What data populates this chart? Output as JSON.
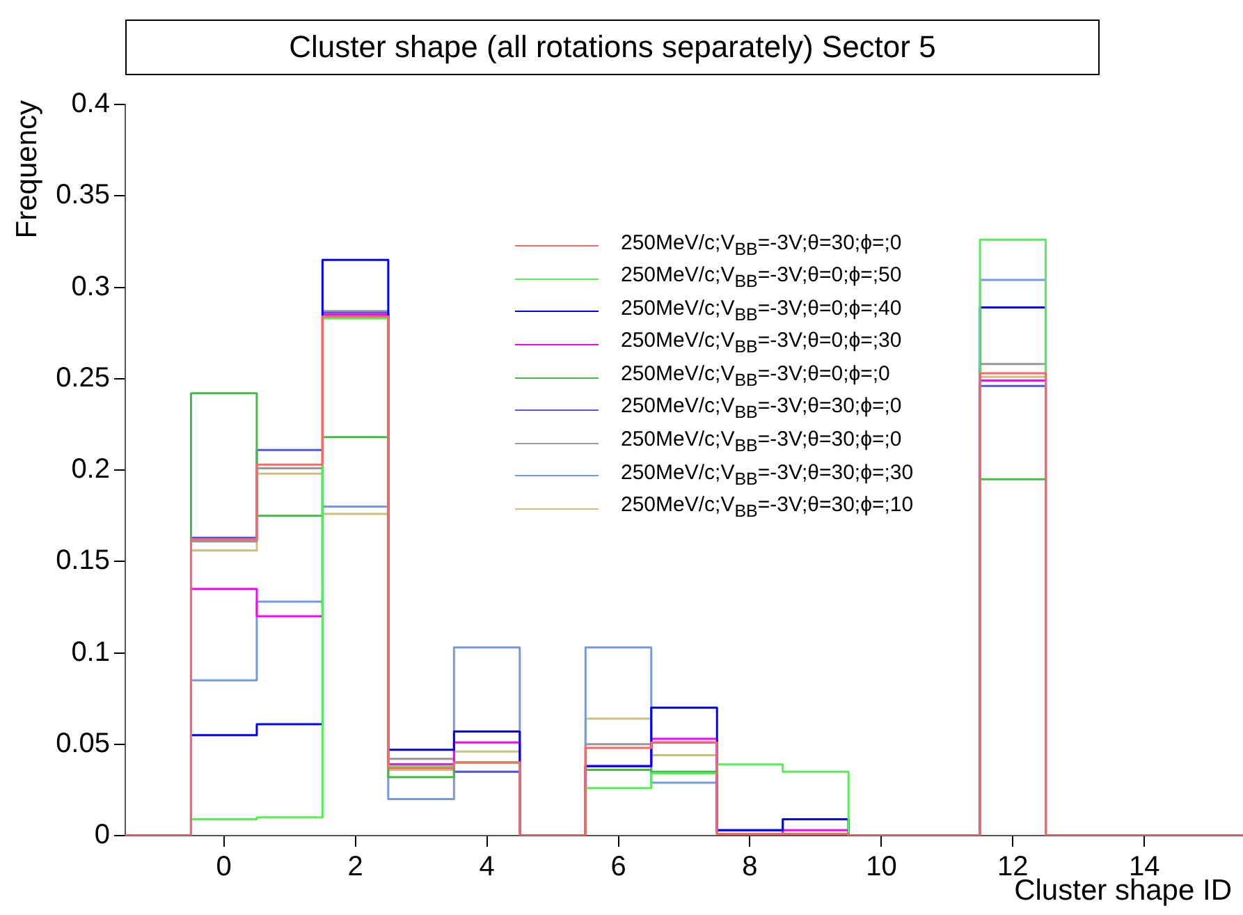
{
  "chart_data": {
    "type": "histogram",
    "title": "Cluster shape (all rotations separately) Sector 5",
    "xlabel": "Cluster shape ID",
    "ylabel": "Frequency",
    "bins": [
      -1.5,
      -0.5,
      0.5,
      1.5,
      2.5,
      3.5,
      4.5,
      5.5,
      6.5,
      7.5,
      8.5,
      9.5,
      10.5,
      11.5,
      12.5,
      13.5,
      14.5,
      15.5
    ],
    "xlim": [
      -1.5,
      15.5
    ],
    "xticks": [
      0,
      2,
      4,
      6,
      8,
      10,
      12,
      14
    ],
    "ylim": [
      0,
      0.4
    ],
    "yticks": [
      0,
      0.05,
      0.1,
      0.15,
      0.2,
      0.25,
      0.3,
      0.35,
      0.4
    ],
    "grid": false,
    "legend": "top right",
    "series": [
      {
        "name": "250MeV/c;V$_{BB}$=-3V;θ=30;ϕ=;0",
        "color": "#ff6666",
        "values": [
          0,
          0.162,
          0.203,
          0.284,
          0.037,
          0.04,
          0,
          0.048,
          0.051,
          0.001,
          0.001,
          0,
          0,
          0.253,
          0,
          0,
          0
        ]
      },
      {
        "name": "250MeV/c;V$_{BB}$=-3V;θ=0;ϕ=;50",
        "color": "#55ee55",
        "values": [
          0,
          0.009,
          0.01,
          0.283,
          0.038,
          0.04,
          0,
          0.026,
          0.034,
          0.039,
          0.035,
          0,
          0,
          0.326,
          0,
          0,
          0
        ]
      },
      {
        "name": "250MeV/c;V$_{BB}$=-3V;θ=0;ϕ=;40",
        "color": "#0000ff",
        "values": [
          0,
          0.055,
          0.061,
          0.315,
          0.047,
          0.057,
          0,
          0.038,
          0.07,
          0.003,
          0.009,
          0,
          0,
          0.289,
          0,
          0,
          0
        ]
      },
      {
        "name": "250MeV/c;V$_{BB}$=-3V;θ=0;ϕ=;30",
        "color": "#ff00ff",
        "values": [
          0,
          0.135,
          0.12,
          0.285,
          0.039,
          0.051,
          0,
          0.038,
          0.053,
          0.001,
          0.003,
          0,
          0,
          0.249,
          0,
          0,
          0
        ]
      },
      {
        "name": "250MeV/c;V$_{BB}$=-3V;θ=0;ϕ=;0",
        "color": "#44bb44",
        "values": [
          0,
          0.242,
          0.175,
          0.218,
          0.032,
          0.04,
          0,
          0.036,
          0.035,
          0.001,
          0.001,
          0,
          0,
          0.195,
          0,
          0,
          0
        ]
      },
      {
        "name": "250MeV/c;V$_{BB}$=-3V;θ=30;ϕ=;0",
        "color": "#5555ee",
        "values": [
          0,
          0.163,
          0.211,
          0.286,
          0.039,
          0.035,
          0,
          0.038,
          0.051,
          0.003,
          0.009,
          0,
          0,
          0.246,
          0,
          0,
          0
        ]
      },
      {
        "name": "250MeV/c;V$_{BB}$=-3V;θ=30;ϕ=;0",
        "color": "#999999",
        "values": [
          0,
          0.161,
          0.201,
          0.287,
          0.042,
          0.035,
          0,
          0.05,
          0.051,
          0.001,
          0.001,
          0,
          0,
          0.258,
          0,
          0,
          0
        ]
      },
      {
        "name": "250MeV/c;V$_{BB}$=-3V;θ=30;ϕ=;30",
        "color": "#7799dd",
        "values": [
          0,
          0.085,
          0.128,
          0.18,
          0.02,
          0.103,
          0,
          0.103,
          0.029,
          0.001,
          0.001,
          0,
          0,
          0.304,
          0,
          0,
          0
        ]
      },
      {
        "name": "250MeV/c;V$_{BB}$=-3V;θ=30;ϕ=;10",
        "color": "#ccc080",
        "values": [
          0,
          0.156,
          0.198,
          0.176,
          0.036,
          0.046,
          0,
          0.064,
          0.044,
          0.001,
          0.001,
          0,
          0,
          0.251,
          0,
          0,
          0
        ]
      }
    ]
  }
}
